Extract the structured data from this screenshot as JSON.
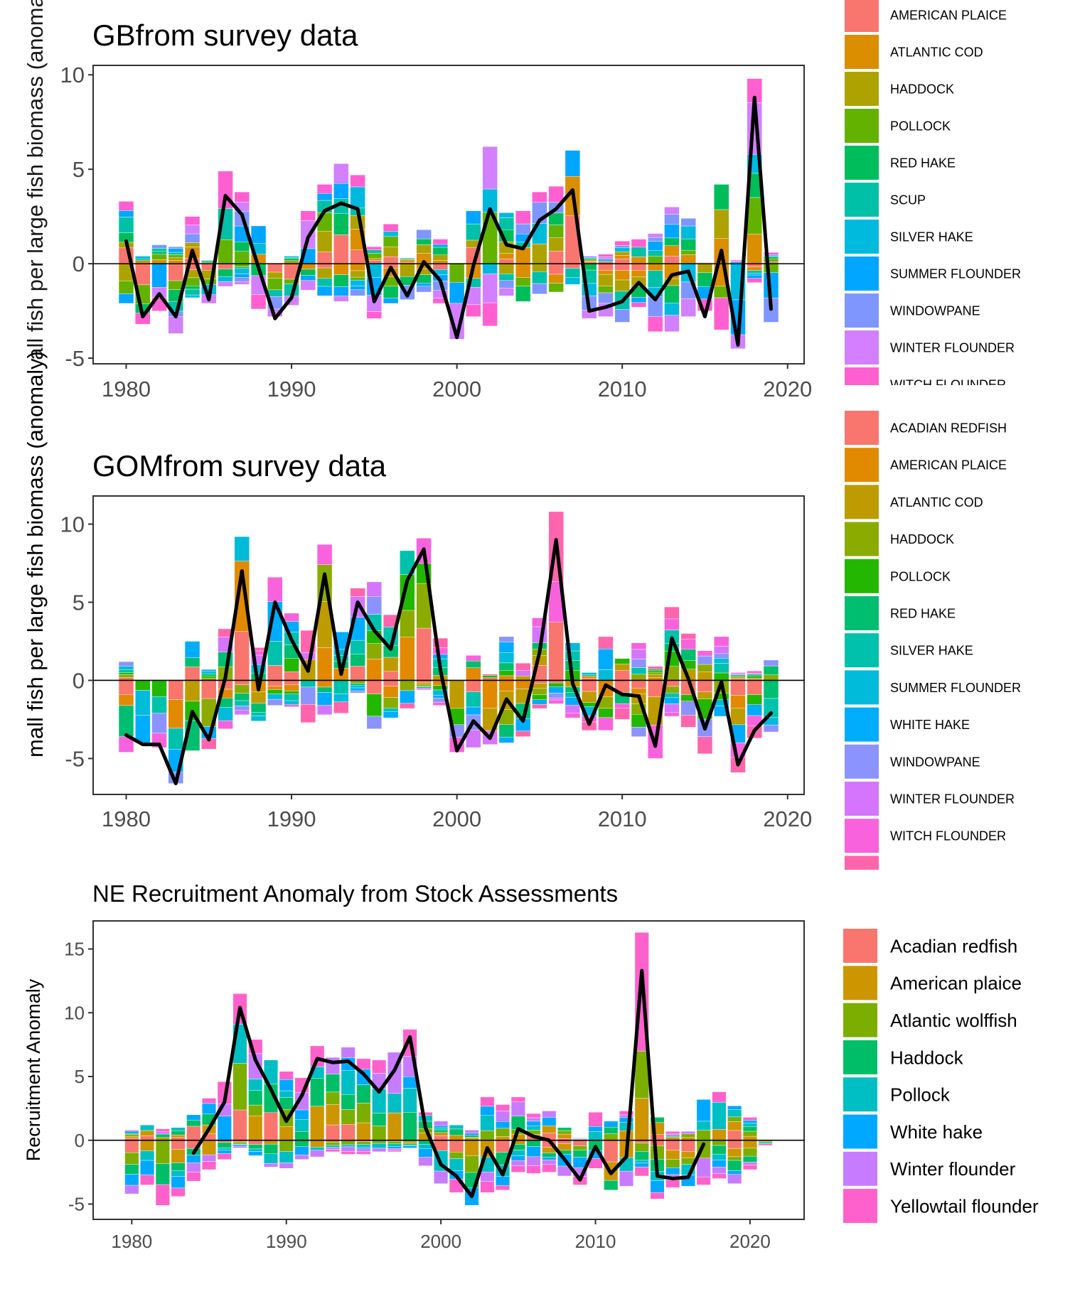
{
  "shared_ylabel": "mall fish per large fish biomass (anomaly)",
  "shared_ylabel_overlap": "all fish per large fish biomass (anoma",
  "chart_data": [
    {
      "type": "bar",
      "stacked": true,
      "title": "GBfrom survey data",
      "xlabel": "",
      "ylabel": "",
      "xlim": [
        1978,
        2021
      ],
      "ylim": [
        -5.3,
        10.5
      ],
      "x_ticks": [
        1980,
        1990,
        2000,
        2010,
        2020
      ],
      "y_ticks": [
        -5,
        0,
        5,
        10
      ],
      "y_tick_labels": [
        "-5",
        "0",
        "5",
        "10"
      ],
      "grid": false,
      "legend_position": "right",
      "categories": [
        1980,
        1981,
        1982,
        1983,
        1984,
        1985,
        1986,
        1987,
        1988,
        1989,
        1990,
        1991,
        1992,
        1993,
        1994,
        1995,
        1996,
        1997,
        1998,
        1999,
        2000,
        2001,
        2002,
        2003,
        2004,
        2005,
        2006,
        2007,
        2008,
        2009,
        2010,
        2011,
        2012,
        2013,
        2014,
        2015,
        2016,
        2017,
        2018,
        2019
      ],
      "positive_totals": [
        3.3,
        0.4,
        1.0,
        0.9,
        2.5,
        0.2,
        4.9,
        3.8,
        2.0,
        0.0,
        0.4,
        2.8,
        4.2,
        5.3,
        4.7,
        0.9,
        2.1,
        0.3,
        1.8,
        1.3,
        0.0,
        2.8,
        6.2,
        2.7,
        2.8,
        3.8,
        4.1,
        6.0,
        0.4,
        0.5,
        1.2,
        1.3,
        1.6,
        3.0,
        2.4,
        0.1,
        4.2,
        0.2,
        9.8,
        0.6
      ],
      "negative_totals": [
        -2.1,
        -3.2,
        -2.5,
        -3.7,
        -1.8,
        -2.1,
        -1.2,
        -1.1,
        -2.4,
        -2.8,
        -2.2,
        -1.4,
        -1.7,
        -2.0,
        -1.7,
        -2.9,
        -2.1,
        -1.9,
        -1.5,
        -2.1,
        -4.0,
        -2.8,
        -3.3,
        -1.7,
        -2.0,
        -1.6,
        -1.5,
        -1.1,
        -2.9,
        -2.8,
        -3.1,
        -2.3,
        -3.6,
        -3.6,
        -2.8,
        -2.5,
        -3.5,
        -4.5,
        -1.0,
        -3.1
      ],
      "line": {
        "name": "",
        "values": [
          1.2,
          -2.8,
          -1.6,
          -2.8,
          0.7,
          -1.9,
          3.6,
          2.6,
          -0.2,
          -2.9,
          -1.8,
          1.4,
          2.8,
          3.2,
          2.9,
          -2.0,
          -0.2,
          -1.7,
          0.1,
          -0.9,
          -3.9,
          -0.1,
          2.9,
          1.0,
          0.8,
          2.3,
          2.9,
          3.9,
          -2.5,
          -2.3,
          -2.0,
          -1.0,
          -1.9,
          -0.6,
          -0.4,
          -2.8,
          0.7,
          -4.3,
          8.8,
          -2.4
        ]
      },
      "legend": [
        {
          "name": "AMERICAN PLAICE",
          "color": "#F8766D"
        },
        {
          "name": "ATLANTIC COD",
          "color": "#DB8E00"
        },
        {
          "name": "HADDOCK",
          "color": "#AEA200"
        },
        {
          "name": "POLLOCK",
          "color": "#64B200"
        },
        {
          "name": "RED HAKE",
          "color": "#00BD5C"
        },
        {
          "name": "SCUP",
          "color": "#00C1A7"
        },
        {
          "name": "SILVER HAKE",
          "color": "#00BADE"
        },
        {
          "name": "SUMMER FLOUNDER",
          "color": "#00A6FF"
        },
        {
          "name": "WINDOWPANE",
          "color": "#7F96FF"
        },
        {
          "name": "WINTER FLOUNDER",
          "color": "#D280FF"
        },
        {
          "name": "WITCH FLOUNDER",
          "color": "#FF5FD1"
        }
      ]
    },
    {
      "type": "bar",
      "stacked": true,
      "title": "GOMfrom survey data",
      "xlabel": "",
      "ylabel": "",
      "xlim": [
        1978,
        2021
      ],
      "ylim": [
        -7.3,
        11.8
      ],
      "x_ticks": [
        1980,
        1990,
        2000,
        2010,
        2020
      ],
      "y_ticks": [
        -5,
        0,
        5,
        10
      ],
      "y_tick_labels": [
        "-5",
        "0",
        "5",
        "10"
      ],
      "grid": false,
      "legend_position": "right",
      "categories": [
        1980,
        1981,
        1982,
        1983,
        1984,
        1985,
        1986,
        1987,
        1988,
        1989,
        1990,
        1991,
        1992,
        1993,
        1994,
        1995,
        1996,
        1997,
        1998,
        1999,
        2000,
        2001,
        2002,
        2003,
        2004,
        2005,
        2006,
        2007,
        2008,
        2009,
        2010,
        2011,
        2012,
        2013,
        2014,
        2015,
        2016,
        2017,
        2018,
        2019
      ],
      "positive_totals": [
        1.2,
        0.0,
        0.0,
        0.0,
        2.5,
        0.7,
        3.3,
        9.2,
        2.1,
        6.6,
        4.3,
        3.2,
        8.7,
        3.1,
        5.9,
        6.3,
        4.2,
        8.3,
        9.1,
        2.7,
        0.0,
        1.6,
        0.4,
        2.8,
        1.1,
        4.0,
        10.8,
        2.4,
        0.5,
        2.8,
        1.4,
        2.4,
        0.9,
        4.7,
        3.0,
        1.9,
        2.8,
        0.5,
        0.6,
        1.3
      ],
      "negative_totals": [
        -4.6,
        -4.0,
        -4.3,
        -6.6,
        -4.5,
        -4.4,
        -3.1,
        -2.2,
        -2.6,
        -1.6,
        -1.7,
        -2.7,
        -2.2,
        -2.1,
        -0.8,
        -3.1,
        -2.4,
        -1.8,
        -0.6,
        -1.6,
        -4.6,
        -4.3,
        -4.1,
        -4.0,
        -3.6,
        -1.8,
        -1.5,
        -2.4,
        -3.2,
        -3.2,
        -2.5,
        -3.6,
        -5.0,
        -2.3,
        -3.0,
        -4.7,
        -2.3,
        -5.9,
        -3.7,
        -3.3
      ],
      "line": {
        "name": "",
        "values": [
          -3.5,
          -4.1,
          -4.1,
          -6.6,
          -2.0,
          -3.8,
          0.2,
          7.0,
          -0.6,
          5.0,
          2.6,
          0.6,
          6.8,
          0.4,
          5.0,
          3.2,
          2.0,
          6.4,
          8.4,
          0.7,
          -4.5,
          -2.6,
          -3.7,
          -1.2,
          -2.6,
          1.8,
          9.0,
          -0.2,
          -2.8,
          -0.3,
          -0.9,
          -1.0,
          -4.2,
          2.7,
          0.1,
          -3.1,
          -0.1,
          -5.4,
          -3.2,
          -2.1
        ]
      },
      "legend": [
        {
          "name": "ACADIAN REDFISH",
          "color": "#F8766D"
        },
        {
          "name": "AMERICAN PLAICE",
          "color": "#E18A00"
        },
        {
          "name": "ATLANTIC COD",
          "color": "#BE9C00"
        },
        {
          "name": "HADDOCK",
          "color": "#8CAB00"
        },
        {
          "name": "POLLOCK",
          "color": "#24B700"
        },
        {
          "name": "RED HAKE",
          "color": "#00BE70"
        },
        {
          "name": "SILVER HAKE",
          "color": "#00C1AB"
        },
        {
          "name": "SUMMER FLOUNDER",
          "color": "#00BBDA"
        },
        {
          "name": "WHITE HAKE",
          "color": "#00ACFC"
        },
        {
          "name": "WINDOWPANE",
          "color": "#8B93FF"
        },
        {
          "name": "WINTER FLOUNDER",
          "color": "#D575FE"
        },
        {
          "name": "WITCH FLOUNDER",
          "color": "#F962DD"
        },
        {
          "name": "",
          "color": "#FF65AC"
        }
      ]
    },
    {
      "type": "bar",
      "stacked": true,
      "title": "NE Recruitment Anomaly from Stock Assessments",
      "xlabel": "",
      "ylabel": "Recruitment Anomaly",
      "xlim": [
        1977.5,
        2023.5
      ],
      "ylim": [
        -6.2,
        17.2
      ],
      "x_ticks": [
        1980,
        1990,
        2000,
        2010,
        2020
      ],
      "y_ticks": [
        -5,
        0,
        5,
        10,
        15
      ],
      "y_tick_labels": [
        "-5",
        "0",
        "5",
        "10",
        "15"
      ],
      "grid": false,
      "legend_position": "right",
      "categories": [
        1980,
        1981,
        1982,
        1983,
        1984,
        1985,
        1986,
        1987,
        1988,
        1989,
        1990,
        1991,
        1992,
        1993,
        1994,
        1995,
        1996,
        1997,
        1998,
        1999,
        2000,
        2001,
        2002,
        2003,
        2004,
        2005,
        2006,
        2007,
        2008,
        2009,
        2010,
        2011,
        2012,
        2013,
        2014,
        2015,
        2016,
        2017,
        2018,
        2019,
        2020,
        2021
      ],
      "positive_totals": [
        0.8,
        1.2,
        0.9,
        1.0,
        2.0,
        3.3,
        4.6,
        11.5,
        7.9,
        6.3,
        5.4,
        4.9,
        7.4,
        6.5,
        7.3,
        6.4,
        6.3,
        6.9,
        8.7,
        2.2,
        1.5,
        1.2,
        0.8,
        3.4,
        2.8,
        3.4,
        2.1,
        2.3,
        1.0,
        0.2,
        2.2,
        1.5,
        2.3,
        16.3,
        1.8,
        0.7,
        0.7,
        3.2,
        3.8,
        2.7,
        1.8,
        0.0
      ],
      "negative_totals": [
        -4.2,
        -3.5,
        -5.1,
        -4.4,
        -3.2,
        -2.3,
        -1.5,
        -0.6,
        -1.2,
        -2.1,
        -2.2,
        -1.5,
        -1.3,
        -0.9,
        -1.1,
        -1.1,
        -0.9,
        -0.9,
        -0.6,
        -2.0,
        -3.4,
        -4.1,
        -5.1,
        -4.1,
        -3.9,
        -2.5,
        -2.6,
        -2.5,
        -2.8,
        -3.5,
        -2.2,
        -3.9,
        -3.6,
        -2.8,
        -4.6,
        -3.7,
        -3.6,
        -3.5,
        -3.0,
        -3.4,
        -2.3,
        -0.4
      ],
      "line": {
        "name": "",
        "start": 1984,
        "values": [
          -1.0,
          0.9,
          3.0,
          10.4,
          6.3,
          4.0,
          1.5,
          3.5,
          6.4,
          6.1,
          6.2,
          5.2,
          3.8,
          5.5,
          8.1,
          1.0,
          -1.9,
          -2.8,
          -4.4,
          -0.6,
          -2.7,
          0.9,
          0.3,
          0.0,
          -1.5,
          -3.1,
          -0.5,
          -2.6,
          -1.3,
          13.3,
          -2.8,
          -3.0,
          -2.9,
          -0.3
        ]
      },
      "legend": [
        {
          "name": "Acadian redfish",
          "color": "#F8766D"
        },
        {
          "name": "American plaice",
          "color": "#CD9600"
        },
        {
          "name": "Atlantic wolffish",
          "color": "#7CAE00"
        },
        {
          "name": "Haddock",
          "color": "#00BE67"
        },
        {
          "name": "Pollock",
          "color": "#00BFC4"
        },
        {
          "name": "White hake",
          "color": "#00A9FF"
        },
        {
          "name": "Winter flounder",
          "color": "#C77CFF"
        },
        {
          "name": "Yellowtail flounder",
          "color": "#FF61CC"
        }
      ]
    }
  ]
}
